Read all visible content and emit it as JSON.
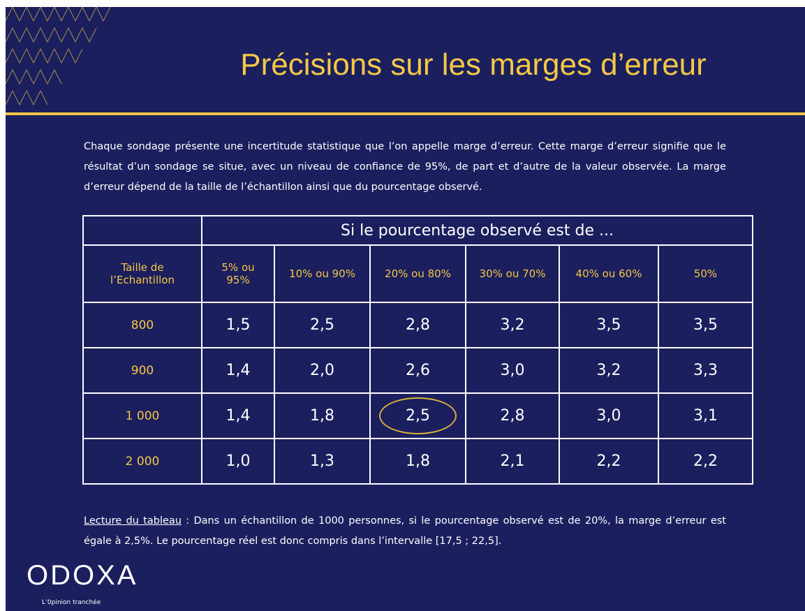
{
  "title": "Précisions sur les marges d’erreur",
  "intro": "Chaque sondage présente une incertitude statistique que l’on appelle marge d’erreur. Cette marge d’erreur signifie que le résultat d’un sondage se situe, avec un niveau de confiance de 95%, de part et d’autre de la valeur observée. La marge d’erreur dépend de la taille de l’échantillon ainsi que du pourcentage observé.",
  "table": {
    "header": "Si le pourcentage observé est de ...",
    "row_header": "Taille de l’Echantillon",
    "columns": [
      "5% ou 95%",
      "10% ou 90%",
      "20% ou 80%",
      "30% ou 70%",
      "40% ou 60%",
      "50%"
    ],
    "rows": [
      [
        "800",
        "1,5",
        "2,5",
        "2,8",
        "3,2",
        "3,5",
        "3,5"
      ],
      [
        "900",
        "1,4",
        "2,0",
        "2,6",
        "3,0",
        "3,2",
        "3,3"
      ],
      [
        "1 000",
        "1,4",
        "1,8",
        "2,5",
        "2,8",
        "3,0",
        "3,1"
      ],
      [
        "2 000",
        "1,0",
        "1,3",
        "1,8",
        "2,1",
        "2,2",
        "2,2"
      ]
    ]
  },
  "reading": {
    "label": "Lecture du tableau",
    "text": " : Dans un échantillon de 1000 personnes, si le pourcentage observé est de 20%, la marge d’erreur est égale à 2,5%. Le pourcentage réel est donc compris dans l’intervalle [17,5 ; 22,5]."
  },
  "logo": {
    "name": "ODOXA",
    "tagline": "L’0pinion tranchée"
  }
}
